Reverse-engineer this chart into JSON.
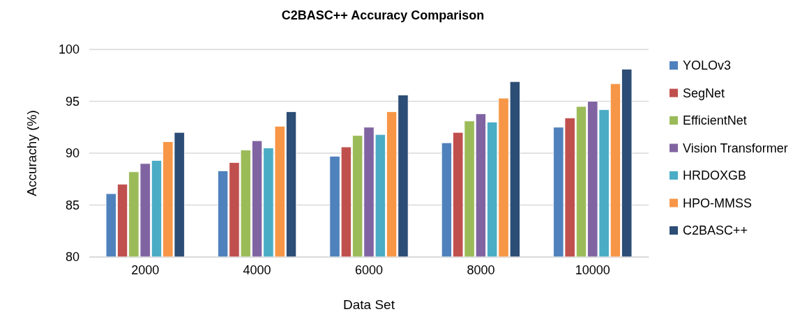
{
  "chart_data": {
    "type": "bar",
    "title": "C2BASC++ Accuracy Comparison",
    "xlabel": "Data Set",
    "ylabel": "Accurachy (%)",
    "categories": [
      "2000",
      "4000",
      "6000",
      "8000",
      "10000"
    ],
    "series": [
      {
        "name": "YOLOv3",
        "color": "#4f81bd",
        "values": [
          86.1,
          88.3,
          89.7,
          91.0,
          92.5
        ]
      },
      {
        "name": "SegNet",
        "color": "#c0504d",
        "values": [
          87.0,
          89.1,
          90.6,
          92.0,
          93.4
        ]
      },
      {
        "name": "EfficientNet",
        "color": "#9bbb59",
        "values": [
          88.2,
          90.3,
          91.7,
          93.1,
          94.5
        ]
      },
      {
        "name": "Vision Transformer",
        "color": "#8064a2",
        "values": [
          89.0,
          91.2,
          92.5,
          93.8,
          95.0
        ]
      },
      {
        "name": "HRDOXGB",
        "color": "#4bacc6",
        "values": [
          89.3,
          90.5,
          91.8,
          93.0,
          94.2
        ]
      },
      {
        "name": "HPO-MMSS",
        "color": "#f79646",
        "values": [
          91.1,
          92.6,
          94.0,
          95.3,
          96.7
        ]
      },
      {
        "name": "C2BASC++",
        "color": "#2c4d75",
        "values": [
          92.0,
          94.0,
          95.6,
          96.9,
          98.1
        ]
      }
    ],
    "ylim": [
      80,
      100
    ],
    "yticks": [
      80,
      85,
      90,
      95,
      100
    ],
    "grid": "y",
    "legend": "right"
  }
}
